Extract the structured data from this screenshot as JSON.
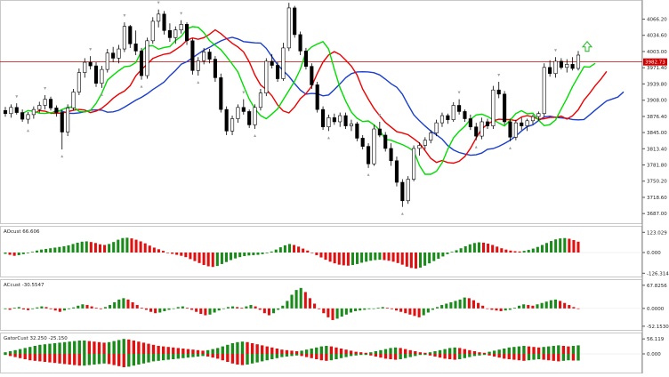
{
  "chart_data": [
    {
      "type": "candlestick",
      "name": "main",
      "ylim": [
        3670,
        4100
      ],
      "price_ticks": [
        "4066.20",
        "4034.60",
        "4003.00",
        "3971.40",
        "3939.80",
        "3908.00",
        "3876.40",
        "3845.00",
        "3813.40",
        "3781.80",
        "3750.20",
        "3718.60",
        "3687.00"
      ],
      "current_price": "3982.73",
      "horizontal_line": 3982.7,
      "colors": {
        "up": "#000000",
        "down": "#000000",
        "ma_fast": "#00dd00",
        "ma_mid": "#ee0000",
        "ma_slow": "#1a3fcc",
        "hline": "#cc0000",
        "fractal": "#a0a0a0",
        "arrow": "#22bb22"
      },
      "candles": [
        [
          3888,
          3895,
          3876,
          3882
        ],
        [
          3882,
          3900,
          3874,
          3894
        ],
        [
          3894,
          3902,
          3880,
          3884
        ],
        [
          3884,
          3890,
          3866,
          3871
        ],
        [
          3871,
          3885,
          3862,
          3880
        ],
        [
          3880,
          3896,
          3872,
          3890
        ],
        [
          3890,
          3905,
          3884,
          3898
        ],
        [
          3898,
          3918,
          3890,
          3910
        ],
        [
          3910,
          3915,
          3888,
          3893
        ],
        [
          3893,
          3898,
          3876,
          3884
        ],
        [
          3884,
          3889,
          3812,
          3846
        ],
        [
          3846,
          3900,
          3838,
          3893
        ],
        [
          3893,
          3930,
          3888,
          3924
        ],
        [
          3924,
          3970,
          3918,
          3962
        ],
        [
          3962,
          3990,
          3952,
          3982
        ],
        [
          3982,
          3994,
          3968,
          3975
        ],
        [
          3975,
          3982,
          3934,
          3941
        ],
        [
          3941,
          3975,
          3932,
          3968
        ],
        [
          3968,
          4008,
          3962,
          4000
        ],
        [
          4000,
          4012,
          3982,
          3990
        ],
        [
          3990,
          4016,
          3980,
          4008
        ],
        [
          4008,
          4060,
          4002,
          4052
        ],
        [
          4052,
          4055,
          4010,
          4018
        ],
        [
          4018,
          4044,
          3996,
          4004
        ],
        [
          4004,
          4010,
          3948,
          3956
        ],
        [
          3956,
          4030,
          3950,
          4024
        ],
        [
          4024,
          4070,
          4018,
          4062
        ],
        [
          4062,
          4085,
          4050,
          4076
        ],
        [
          4076,
          4082,
          4036,
          4044
        ],
        [
          4044,
          4058,
          4022,
          4030
        ],
        [
          4030,
          4052,
          4018,
          4045
        ],
        [
          4045,
          4064,
          4038,
          4056
        ],
        [
          4056,
          4060,
          4016,
          4024
        ],
        [
          4024,
          4028,
          3958,
          3966
        ],
        [
          3966,
          3992,
          3956,
          3985
        ],
        [
          3985,
          4010,
          3978,
          4002
        ],
        [
          4002,
          4008,
          3980,
          3988
        ],
        [
          3988,
          3994,
          3944,
          3952
        ],
        [
          3952,
          3960,
          3884,
          3890
        ],
        [
          3890,
          3896,
          3840,
          3848
        ],
        [
          3848,
          3878,
          3840,
          3872
        ],
        [
          3872,
          3900,
          3864,
          3894
        ],
        [
          3894,
          3910,
          3880,
          3886
        ],
        [
          3886,
          3890,
          3854,
          3860
        ],
        [
          3860,
          3900,
          3852,
          3894
        ],
        [
          3894,
          3930,
          3888,
          3922
        ],
        [
          3922,
          3990,
          3916,
          3984
        ],
        [
          3984,
          3998,
          3970,
          3976
        ],
        [
          3976,
          3982,
          3944,
          3950
        ],
        [
          3950,
          4020,
          3946,
          4010
        ],
        [
          4010,
          4098,
          4004,
          4088
        ],
        [
          4088,
          4092,
          4030,
          4036
        ],
        [
          4036,
          4042,
          3996,
          4004
        ],
        [
          4004,
          4010,
          3968,
          3974
        ],
        [
          3974,
          3980,
          3930,
          3938
        ],
        [
          3938,
          3944,
          3884,
          3890
        ],
        [
          3890,
          3896,
          3850,
          3856
        ],
        [
          3856,
          3880,
          3848,
          3874
        ],
        [
          3874,
          3882,
          3860,
          3866
        ],
        [
          3866,
          3884,
          3856,
          3878
        ],
        [
          3878,
          3884,
          3852,
          3858
        ],
        [
          3858,
          3870,
          3848,
          3862
        ],
        [
          3862,
          3866,
          3828,
          3834
        ],
        [
          3834,
          3840,
          3812,
          3818
        ],
        [
          3818,
          3824,
          3776,
          3784
        ],
        [
          3784,
          3860,
          3780,
          3852
        ],
        [
          3852,
          3866,
          3836,
          3840
        ],
        [
          3840,
          3846,
          3808,
          3814
        ],
        [
          3814,
          3824,
          3780,
          3790
        ],
        [
          3790,
          3798,
          3740,
          3748
        ],
        [
          3748,
          3754,
          3700,
          3712
        ],
        [
          3712,
          3760,
          3706,
          3754
        ],
        [
          3754,
          3820,
          3750,
          3814
        ],
        [
          3814,
          3826,
          3800,
          3820
        ],
        [
          3820,
          3836,
          3812,
          3830
        ],
        [
          3830,
          3850,
          3824,
          3844
        ],
        [
          3844,
          3870,
          3838,
          3864
        ],
        [
          3864,
          3884,
          3856,
          3878
        ],
        [
          3878,
          3882,
          3862,
          3870
        ],
        [
          3870,
          3904,
          3866,
          3898
        ],
        [
          3898,
          3910,
          3880,
          3886
        ],
        [
          3886,
          3890,
          3866,
          3872
        ],
        [
          3872,
          3880,
          3850,
          3856
        ],
        [
          3856,
          3864,
          3830,
          3838
        ],
        [
          3838,
          3874,
          3832,
          3866
        ],
        [
          3866,
          3872,
          3852,
          3858
        ],
        [
          3858,
          3936,
          3852,
          3928
        ],
        [
          3928,
          3944,
          3912,
          3920
        ],
        [
          3920,
          3926,
          3860,
          3866
        ],
        [
          3866,
          3872,
          3828,
          3836
        ],
        [
          3836,
          3870,
          3830,
          3864
        ],
        [
          3864,
          3874,
          3850,
          3858
        ],
        [
          3858,
          3872,
          3848,
          3868
        ],
        [
          3868,
          3880,
          3860,
          3876
        ],
        [
          3876,
          3886,
          3868,
          3882
        ],
        [
          3882,
          3980,
          3876,
          3972
        ],
        [
          3972,
          3986,
          3954,
          3960
        ],
        [
          3960,
          3992,
          3952,
          3984
        ],
        [
          3984,
          3990,
          3968,
          3972
        ],
        [
          3972,
          3988,
          3962,
          3978
        ],
        [
          3978,
          3992,
          3966,
          3970
        ],
        [
          3970,
          4004,
          3966,
          3996
        ]
      ]
    },
    {
      "type": "bar",
      "name": "osc1",
      "label": "AOcust 66.606",
      "ticks": [
        "123.029",
        "0.000",
        "-126.314"
      ],
      "ylim": [
        -130,
        130
      ],
      "colors": {
        "up": "#1a8a1a",
        "down": "#e01010"
      },
      "values": [
        -8,
        -14,
        -20,
        -16,
        -10,
        -4,
        4,
        12,
        18,
        22,
        26,
        30,
        34,
        38,
        44,
        52,
        60,
        66,
        68,
        64,
        58,
        50,
        46,
        52,
        64,
        78,
        88,
        90,
        86,
        78,
        68,
        56,
        42,
        30,
        20,
        10,
        -2,
        -8,
        -14,
        -20,
        -28,
        -40,
        -52,
        -64,
        -76,
        -84,
        -88,
        -82,
        -70,
        -58,
        -46,
        -36,
        -28,
        -22,
        -18,
        -16,
        -14,
        -10,
        -4,
        6,
        18,
        32,
        44,
        52,
        46,
        36,
        24,
        12,
        -2,
        -16,
        -30,
        -44,
        -56,
        -66,
        -74,
        -78,
        -80,
        -76,
        -70,
        -62,
        -56,
        -50,
        -46,
        -44,
        -46,
        -50,
        -56,
        -64,
        -74,
        -86,
        -94,
        -98,
        -92,
        -80,
        -66,
        -52,
        -38,
        -24,
        -10,
        4,
        14,
        26,
        38,
        50,
        58,
        62,
        60,
        54,
        46,
        36,
        26,
        18,
        12,
        8,
        6,
        10,
        16,
        24,
        34,
        46,
        58,
        70,
        80,
        86,
        88,
        84,
        76,
        66
      ]
    },
    {
      "type": "bar",
      "name": "osc2",
      "label": "ACcust -30.5547",
      "ticks": [
        "67.8256",
        "0.0000",
        "-52.1530"
      ],
      "ylim": [
        -55,
        70
      ],
      "colors": {
        "up": "#1a8a1a",
        "down": "#e01010"
      },
      "values": [
        -2,
        -4,
        2,
        4,
        -3,
        -5,
        -2,
        3,
        6,
        4,
        -2,
        -6,
        -10,
        -6,
        -2,
        3,
        8,
        12,
        10,
        6,
        2,
        -2,
        4,
        10,
        18,
        26,
        30,
        26,
        18,
        10,
        2,
        -4,
        -10,
        -14,
        -12,
        -8,
        -4,
        0,
        4,
        6,
        2,
        -4,
        -10,
        -16,
        -20,
        -18,
        -12,
        -6,
        0,
        4,
        6,
        4,
        2,
        6,
        10,
        6,
        -4,
        -14,
        -20,
        -14,
        -4,
        8,
        22,
        40,
        54,
        60,
        48,
        30,
        14,
        -2,
        -14,
        -26,
        -34,
        -30,
        -24,
        -18,
        -12,
        -8,
        -6,
        -4,
        -2,
        0,
        2,
        4,
        2,
        -2,
        -6,
        -10,
        -14,
        -18,
        -22,
        -26,
        -20,
        -12,
        -4,
        4,
        10,
        14,
        18,
        22,
        26,
        32,
        30,
        24,
        16,
        8,
        0,
        -4,
        -6,
        -8,
        -6,
        -4,
        2,
        8,
        12,
        10,
        8,
        12,
        16,
        20,
        24,
        26,
        22,
        16,
        10,
        4,
        0
      ]
    },
    {
      "type": "bar",
      "name": "osc3",
      "label": "GatorCust 32.250 -25.150",
      "ticks": [
        "56.119",
        "0.000"
      ],
      "ylim": [
        -60,
        60
      ],
      "colors": {
        "up": "#1a8a1a",
        "down": "#e01010"
      },
      "values": [
        6,
        10,
        14,
        18,
        22,
        26,
        30,
        34,
        36,
        38,
        40,
        42,
        44,
        46,
        48,
        50,
        50,
        48,
        46,
        44,
        42,
        44,
        48,
        52,
        56,
        54,
        50,
        46,
        42,
        38,
        34,
        30,
        28,
        26,
        24,
        22,
        20,
        18,
        16,
        14,
        12,
        14,
        18,
        22,
        28,
        34,
        40,
        44,
        46,
        44,
        40,
        36,
        32,
        28,
        24,
        20,
        16,
        14,
        12,
        10,
        12,
        16,
        20,
        24,
        28,
        30,
        28,
        24,
        20,
        16,
        12,
        8,
        6,
        4,
        6,
        10,
        14,
        18,
        22,
        24,
        22,
        18,
        14,
        10,
        6,
        4,
        6,
        10,
        14,
        18,
        22,
        24,
        22,
        18,
        14,
        10,
        6,
        4,
        8,
        12,
        16,
        20,
        24,
        26,
        28,
        30,
        28,
        26,
        24,
        26,
        28,
        30,
        32,
        30,
        28,
        30,
        32
      ],
      "values_lower": [
        -4,
        -8,
        -12,
        -16,
        -20,
        -24,
        -26,
        -28,
        -30,
        -32,
        -34,
        -36,
        -38,
        -40,
        -42,
        -44,
        -44,
        -42,
        -40,
        -38,
        -36,
        -38,
        -42,
        -46,
        -50,
        -48,
        -44,
        -40,
        -36,
        -32,
        -28,
        -26,
        -24,
        -22,
        -20,
        -18,
        -16,
        -14,
        -12,
        -10,
        -8,
        -10,
        -14,
        -18,
        -24,
        -30,
        -36,
        -40,
        -42,
        -40,
        -36,
        -32,
        -28,
        -24,
        -20,
        -16,
        -12,
        -10,
        -8,
        -6,
        -8,
        -12,
        -16,
        -20,
        -24,
        -26,
        -24,
        -20,
        -16,
        -12,
        -8,
        -6,
        -4,
        -4,
        -6,
        -10,
        -14,
        -18,
        -20,
        -22,
        -20,
        -16,
        -12,
        -8,
        -4,
        -4,
        -6,
        -10,
        -14,
        -18,
        -20,
        -22,
        -20,
        -16,
        -12,
        -8,
        -6,
        -4,
        -6,
        -10,
        -14,
        -18,
        -20,
        -22,
        -24,
        -26,
        -24,
        -22,
        -20,
        -22,
        -24,
        -26,
        -28,
        -26,
        -24,
        -25,
        -25
      ]
    }
  ]
}
